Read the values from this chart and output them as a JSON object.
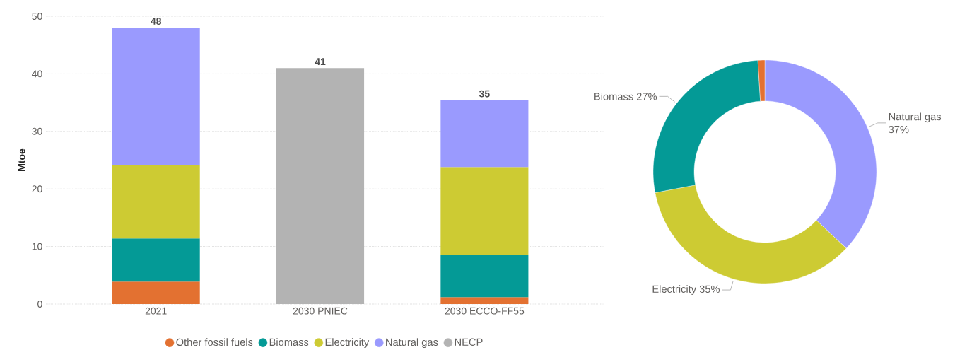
{
  "chart_data": [
    {
      "type": "bar",
      "stacked": true,
      "ylabel": "Mtoe",
      "categories": [
        "2021",
        "2030 PNIEC",
        "2030 ECCO-FF55"
      ],
      "series": [
        {
          "name": "Other fossil fuels",
          "color": "#e37131",
          "values": [
            3.9,
            null,
            1.2
          ]
        },
        {
          "name": "Biomass",
          "color": "#049a96",
          "values": [
            7.5,
            null,
            7.3
          ]
        },
        {
          "name": "Electricity",
          "color": "#cdcb33",
          "values": [
            12.7,
            null,
            15.3
          ]
        },
        {
          "name": "Natural gas",
          "color": "#9a9afe",
          "values": [
            23.9,
            null,
            11.6
          ]
        },
        {
          "name": "NECP",
          "color": "#b3b3b3",
          "values": [
            null,
            41,
            null
          ]
        }
      ],
      "totals": [
        "48",
        "41",
        "35"
      ],
      "ylim": [
        0,
        50
      ],
      "yticks": [
        0,
        10,
        20,
        30,
        40,
        50
      ],
      "grid": "y",
      "legend": "bottom"
    },
    {
      "type": "donut",
      "categories": [
        "Natural gas",
        "Electricity",
        "Biomass",
        null
      ],
      "values": [
        37,
        35,
        27,
        1
      ],
      "colors": [
        "#9a9afe",
        "#cdcb33",
        "#049a96",
        "#e37131"
      ],
      "value_labels": [
        "37%",
        "35%",
        "27%",
        null
      ]
    }
  ]
}
